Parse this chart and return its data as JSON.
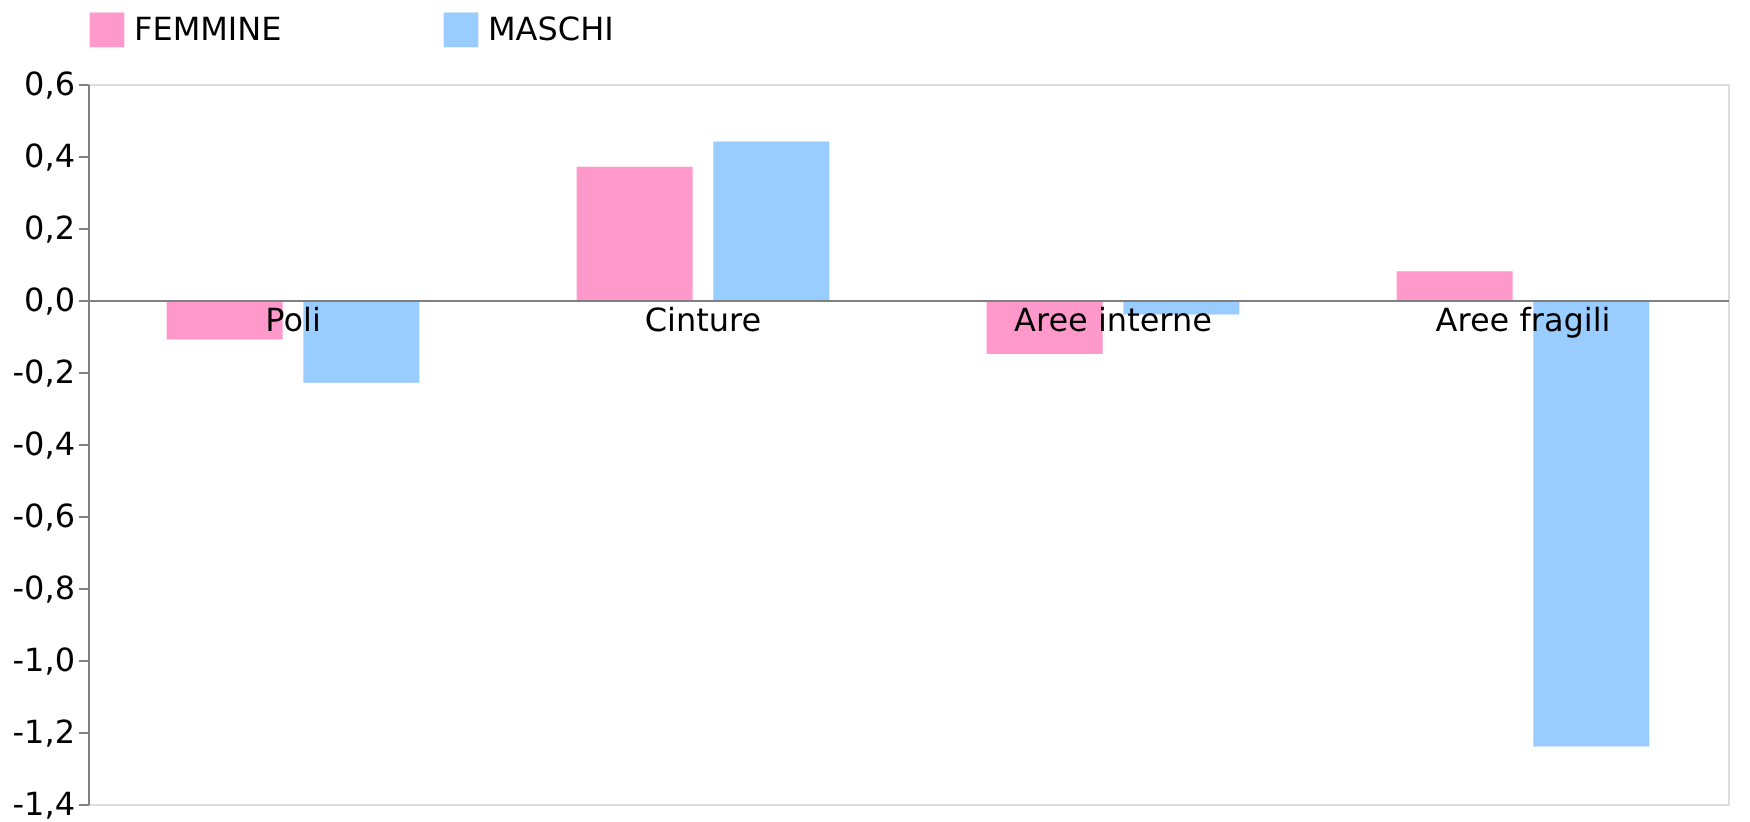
{
  "chart_data": {
    "type": "bar",
    "categories": [
      "Poli",
      "Cinture",
      "Aree interne",
      "Aree fragili"
    ],
    "series": [
      {
        "name": "FEMMINE",
        "color": "#ff99cc",
        "values": [
          -0.11,
          0.37,
          -0.15,
          0.08
        ]
      },
      {
        "name": "MASCHI",
        "color": "#99ccff",
        "values": [
          -0.23,
          0.44,
          -0.04,
          -1.24
        ]
      }
    ],
    "ylim": [
      -1.4,
      0.6
    ],
    "yticks": [
      {
        "value": -1.4,
        "label": "-1,4"
      },
      {
        "value": -1.2,
        "label": "-1,2"
      },
      {
        "value": -1.0,
        "label": "-1,0"
      },
      {
        "value": -0.8,
        "label": "-0,8"
      },
      {
        "value": -0.6,
        "label": "-0,6"
      },
      {
        "value": -0.4,
        "label": "-0,4"
      },
      {
        "value": -0.2,
        "label": "-0,2"
      },
      {
        "value": 0.0,
        "label": "0,0"
      },
      {
        "value": 0.2,
        "label": "0,2"
      },
      {
        "value": 0.4,
        "label": "0,4"
      },
      {
        "value": 0.6,
        "label": "0,6"
      }
    ],
    "grid": false,
    "legend": "top"
  }
}
